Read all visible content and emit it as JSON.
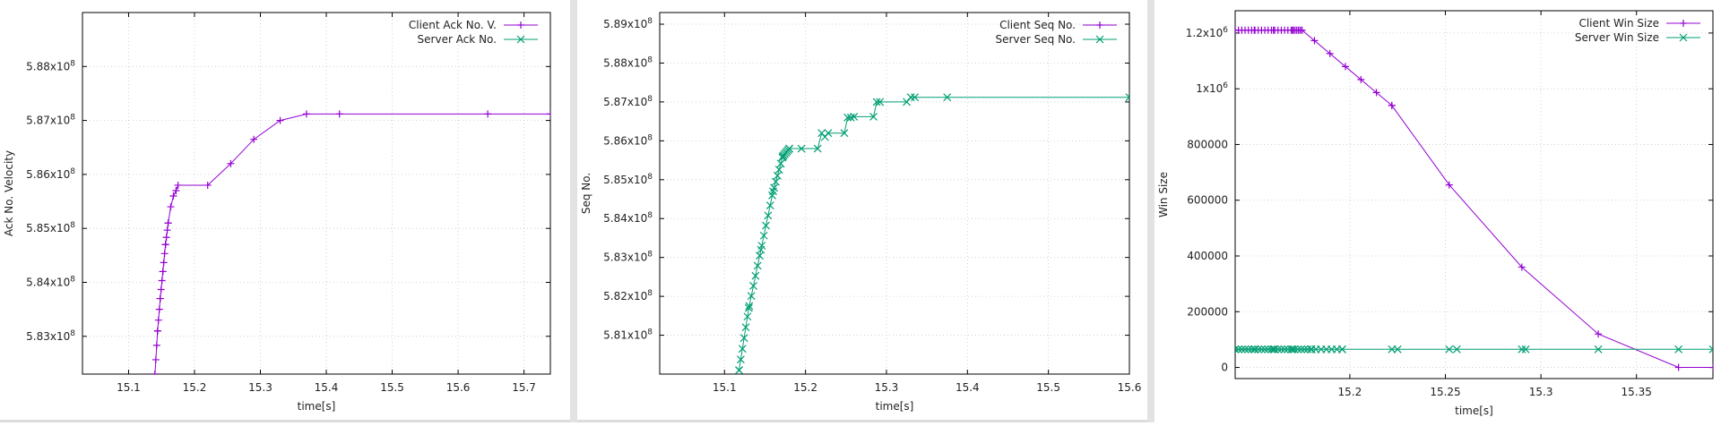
{
  "chart_data": [
    {
      "type": "line",
      "xlabel": "time[s]",
      "ylabel": "Ack No. Velocity",
      "xlim": [
        15.03,
        15.74
      ],
      "ylim": [
        582300000,
        589000000
      ],
      "xticks": [
        15.1,
        15.2,
        15.3,
        15.4,
        15.5,
        15.6,
        15.7
      ],
      "xtick_labels": [
        "15.1",
        "15.2",
        "15.3",
        "15.4",
        "15.5",
        "15.6",
        "15.7"
      ],
      "yticks": [
        583000000,
        584000000,
        585000000,
        586000000,
        587000000,
        588000000
      ],
      "ytick_labels": [
        {
          "mant": "5.83x10",
          "exp": "8"
        },
        {
          "mant": "5.84x10",
          "exp": "8"
        },
        {
          "mant": "5.85x10",
          "exp": "8"
        },
        {
          "mant": "5.86x10",
          "exp": "8"
        },
        {
          "mant": "5.87x10",
          "exp": "8"
        },
        {
          "mant": "5.88x10",
          "exp": "8"
        }
      ],
      "grid": true,
      "legend_position": "top-right",
      "series": [
        {
          "name": "Client Ack No. V.",
          "color": "#9400d3",
          "marker": "plus",
          "x": [
            15.14,
            15.144,
            15.148,
            15.152,
            15.156,
            15.16,
            15.164,
            15.168,
            15.172,
            15.175,
            15.22,
            15.255,
            15.29,
            15.33,
            15.37,
            15.42,
            15.645,
            15.74
          ],
          "y": [
            582300000,
            583100000,
            583700000,
            584200000,
            584700000,
            585100000,
            585400000,
            585600000,
            585700000,
            585800000,
            585800000,
            586200000,
            586650000,
            587000000,
            587120000,
            587120000,
            587120000,
            587120000
          ],
          "marker_count": 16
        },
        {
          "name": "Server Ack No.",
          "color": "#009e73",
          "marker": "x",
          "x": [],
          "y": []
        }
      ]
    },
    {
      "type": "line",
      "xlabel": "time[s]",
      "ylabel": "Seq No.",
      "xlim": [
        15.02,
        15.6
      ],
      "ylim": [
        580000000,
        589300000
      ],
      "xticks": [
        15.1,
        15.2,
        15.3,
        15.4,
        15.5,
        15.6
      ],
      "xtick_labels": [
        "15.1",
        "15.2",
        "15.3",
        "15.4",
        "15.5",
        "15.6"
      ],
      "yticks": [
        581000000,
        582000000,
        583000000,
        584000000,
        585000000,
        586000000,
        587000000,
        588000000,
        589000000
      ],
      "ytick_labels": [
        {
          "mant": "5.81x10",
          "exp": "8"
        },
        {
          "mant": "5.82x10",
          "exp": "8"
        },
        {
          "mant": "5.83x10",
          "exp": "8"
        },
        {
          "mant": "5.84x10",
          "exp": "8"
        },
        {
          "mant": "5.85x10",
          "exp": "8"
        },
        {
          "mant": "5.86x10",
          "exp": "8"
        },
        {
          "mant": "5.87x10",
          "exp": "8"
        },
        {
          "mant": "5.88x10",
          "exp": "8"
        },
        {
          "mant": "5.89x10",
          "exp": "8"
        }
      ],
      "grid": true,
      "legend_position": "top-right",
      "series": [
        {
          "name": "Client Seq No.",
          "color": "#9400d3",
          "marker": "plus",
          "x": [],
          "y": []
        },
        {
          "name": "Server Seq No.",
          "color": "#009e73",
          "marker": "x",
          "x": [
            15.118,
            15.13,
            15.145,
            15.16,
            15.172,
            15.18,
            15.195,
            15.215,
            15.22,
            15.224,
            15.228,
            15.248,
            15.252,
            15.256,
            15.26,
            15.284,
            15.288,
            15.292,
            15.325,
            15.33,
            15.335,
            15.375,
            15.6
          ],
          "y": [
            580100000,
            581700000,
            583200000,
            584700000,
            585600000,
            585800000,
            585800000,
            585800000,
            586200000,
            586100000,
            586200000,
            586200000,
            586600000,
            586600000,
            586620000,
            586620000,
            587000000,
            587000000,
            587000000,
            587120000,
            587120000,
            587120000,
            587120000
          ],
          "marker_count": 30
        }
      ]
    },
    {
      "type": "line",
      "xlabel": "time[s]",
      "ylabel": "Win Size",
      "xlim": [
        15.14,
        15.39
      ],
      "ylim": [
        -40000,
        1280000
      ],
      "xticks": [
        15.2,
        15.25,
        15.3,
        15.35
      ],
      "xtick_labels": [
        "15.2",
        "15.25",
        "15.3",
        "15.35"
      ],
      "yticks": [
        0,
        200000,
        400000,
        600000,
        800000,
        1000000,
        1200000
      ],
      "ytick_labels": [
        {
          "mant": "0",
          "exp": ""
        },
        {
          "mant": "200000",
          "exp": ""
        },
        {
          "mant": "400000",
          "exp": ""
        },
        {
          "mant": "600000",
          "exp": ""
        },
        {
          "mant": "800000",
          "exp": ""
        },
        {
          "mant": "1x10",
          "exp": "6"
        },
        {
          "mant": "1.2x10",
          "exp": "6"
        }
      ],
      "grid": true,
      "legend_position": "top-right",
      "series": [
        {
          "name": "Client Win Size",
          "color": "#9400d3",
          "marker": "plus",
          "x": [
            15.14,
            15.15,
            15.16,
            15.17,
            15.175,
            15.222,
            15.252,
            15.29,
            15.33,
            15.372,
            15.39
          ],
          "y": [
            1210000,
            1210000,
            1210000,
            1210000,
            1210000,
            940000,
            655000,
            360000,
            120000,
            0,
            0
          ],
          "marker_count": 30
        },
        {
          "name": "Server Win Size",
          "color": "#009e73",
          "marker": "x",
          "x": [
            15.14,
            15.15,
            15.16,
            15.17,
            15.18,
            15.196,
            15.222,
            15.225,
            15.252,
            15.256,
            15.29,
            15.292,
            15.33,
            15.372,
            15.39
          ],
          "y": [
            65000,
            65000,
            65000,
            65000,
            65000,
            65000,
            65000,
            65000,
            65000,
            65000,
            65000,
            65000,
            65000,
            65000,
            65000
          ],
          "marker_count": 30
        }
      ]
    }
  ]
}
